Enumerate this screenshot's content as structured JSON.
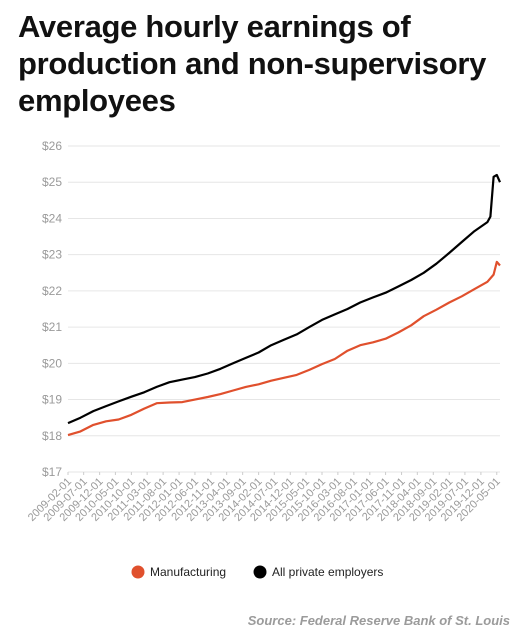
{
  "title": "Average hourly earnings of production and non-supervisory employees",
  "source": "Source: Federal Reserve Bank of St. Louis",
  "chart_data": {
    "type": "line",
    "title": "Average hourly earnings of production and non-supervisory employees",
    "xlabel": "",
    "ylabel": "",
    "ylim": [
      17,
      26
    ],
    "yticks": [
      17,
      18,
      19,
      20,
      21,
      22,
      23,
      24,
      25,
      26
    ],
    "ytick_labels": [
      "$17",
      "$18",
      "$19",
      "$20",
      "$21",
      "$22",
      "$23",
      "$24",
      "$25",
      "$26"
    ],
    "x_start": "2009-02-01",
    "x_end": "2020-06-01",
    "xticks": [
      "2009-02-01",
      "2009-07-01",
      "2009-12-01",
      "2010-05-01",
      "2010-10-01",
      "2011-03-01",
      "2011-08-01",
      "2012-01-01",
      "2012-06-01",
      "2012-11-01",
      "2013-04-01",
      "2013-09-01",
      "2014-02-01",
      "2014-07-01",
      "2014-12-01",
      "2015-05-01",
      "2015-10-01",
      "2016-03-01",
      "2016-08-01",
      "2017-01-01",
      "2017-06-01",
      "2017-11-01",
      "2018-04-01",
      "2018-09-01",
      "2019-02-01",
      "2019-07-01",
      "2019-12-01",
      "2020-05-01"
    ],
    "grid": "horizontal",
    "legend_position": "bottom",
    "series": [
      {
        "name": "Manufacturing",
        "color": "#e0502d",
        "points": [
          [
            "2009-02-01",
            18.02
          ],
          [
            "2009-06-01",
            18.12
          ],
          [
            "2009-10-01",
            18.3
          ],
          [
            "2010-02-01",
            18.4
          ],
          [
            "2010-06-01",
            18.45
          ],
          [
            "2010-10-01",
            18.58
          ],
          [
            "2011-02-01",
            18.75
          ],
          [
            "2011-06-01",
            18.9
          ],
          [
            "2011-10-01",
            18.92
          ],
          [
            "2012-02-01",
            18.93
          ],
          [
            "2012-06-01",
            19.0
          ],
          [
            "2012-10-01",
            19.07
          ],
          [
            "2013-02-01",
            19.15
          ],
          [
            "2013-06-01",
            19.25
          ],
          [
            "2013-10-01",
            19.35
          ],
          [
            "2014-02-01",
            19.42
          ],
          [
            "2014-06-01",
            19.52
          ],
          [
            "2014-10-01",
            19.6
          ],
          [
            "2015-02-01",
            19.68
          ],
          [
            "2015-06-01",
            19.82
          ],
          [
            "2015-10-01",
            19.98
          ],
          [
            "2016-02-01",
            20.12
          ],
          [
            "2016-06-01",
            20.35
          ],
          [
            "2016-10-01",
            20.5
          ],
          [
            "2017-02-01",
            20.58
          ],
          [
            "2017-06-01",
            20.68
          ],
          [
            "2017-10-01",
            20.85
          ],
          [
            "2018-02-01",
            21.05
          ],
          [
            "2018-06-01",
            21.3
          ],
          [
            "2018-10-01",
            21.48
          ],
          [
            "2019-02-01",
            21.68
          ],
          [
            "2019-06-01",
            21.85
          ],
          [
            "2019-10-01",
            22.05
          ],
          [
            "2020-02-01",
            22.25
          ],
          [
            "2020-04-01",
            22.45
          ],
          [
            "2020-05-01",
            22.8
          ],
          [
            "2020-06-01",
            22.7
          ]
        ]
      },
      {
        "name": "All private employers",
        "color": "#000000",
        "points": [
          [
            "2009-02-01",
            18.35
          ],
          [
            "2009-06-01",
            18.5
          ],
          [
            "2009-10-01",
            18.68
          ],
          [
            "2010-02-01",
            18.82
          ],
          [
            "2010-06-01",
            18.95
          ],
          [
            "2010-10-01",
            19.08
          ],
          [
            "2011-02-01",
            19.2
          ],
          [
            "2011-06-01",
            19.35
          ],
          [
            "2011-10-01",
            19.48
          ],
          [
            "2012-02-01",
            19.55
          ],
          [
            "2012-06-01",
            19.62
          ],
          [
            "2012-10-01",
            19.72
          ],
          [
            "2013-02-01",
            19.85
          ],
          [
            "2013-06-01",
            20.0
          ],
          [
            "2013-10-01",
            20.15
          ],
          [
            "2014-02-01",
            20.3
          ],
          [
            "2014-06-01",
            20.5
          ],
          [
            "2014-10-01",
            20.65
          ],
          [
            "2015-02-01",
            20.8
          ],
          [
            "2015-06-01",
            21.0
          ],
          [
            "2015-10-01",
            21.2
          ],
          [
            "2016-02-01",
            21.35
          ],
          [
            "2016-06-01",
            21.5
          ],
          [
            "2016-10-01",
            21.68
          ],
          [
            "2017-02-01",
            21.82
          ],
          [
            "2017-06-01",
            21.95
          ],
          [
            "2017-10-01",
            22.12
          ],
          [
            "2018-02-01",
            22.3
          ],
          [
            "2018-06-01",
            22.5
          ],
          [
            "2018-10-01",
            22.75
          ],
          [
            "2019-02-01",
            23.05
          ],
          [
            "2019-06-01",
            23.35
          ],
          [
            "2019-10-01",
            23.65
          ],
          [
            "2020-02-01",
            23.9
          ],
          [
            "2020-03-01",
            24.05
          ],
          [
            "2020-04-01",
            25.15
          ],
          [
            "2020-05-01",
            25.2
          ],
          [
            "2020-06-01",
            25.0
          ]
        ]
      }
    ]
  }
}
